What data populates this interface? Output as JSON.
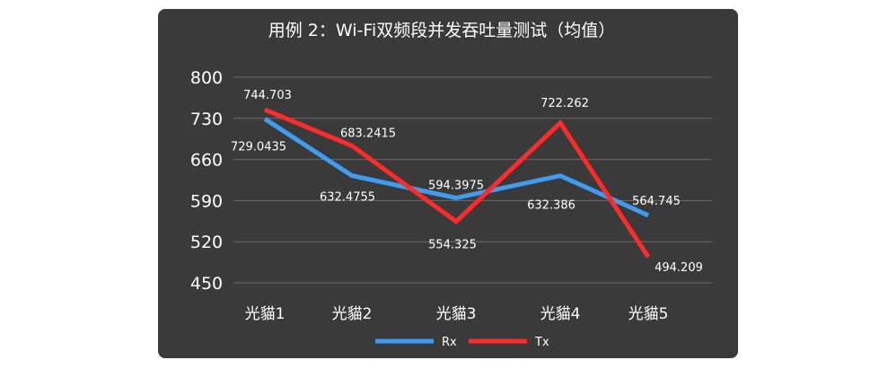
{
  "chart_data": {
    "type": "line",
    "title": "用例 2：Wi-Fi双频段并发吞吐量测试（均值）",
    "xlabel": "",
    "ylabel": "",
    "categories": [
      "光貓1",
      "光貓2",
      "光貓3",
      "光貓4",
      "光貓5"
    ],
    "ylim": [
      450,
      800
    ],
    "yticks": [
      800,
      730,
      660,
      590,
      520,
      450
    ],
    "grid": true,
    "legend_position": "bottom",
    "series": [
      {
        "name": "Rx",
        "color": "#3f9cf0",
        "values": [
          729.0435,
          632.4755,
          594.3975,
          632.386,
          564.745
        ],
        "labels": [
          "729.0435",
          "632.4755",
          "594.3975",
          "632.386",
          "564.745"
        ]
      },
      {
        "name": "Tx",
        "color": "#ff2a2a",
        "values": [
          744.703,
          683.2415,
          554.325,
          722.262,
          494.209
        ],
        "labels": [
          "744.703",
          "683.2415",
          "554.325",
          "722.262",
          "494.209"
        ]
      }
    ]
  }
}
